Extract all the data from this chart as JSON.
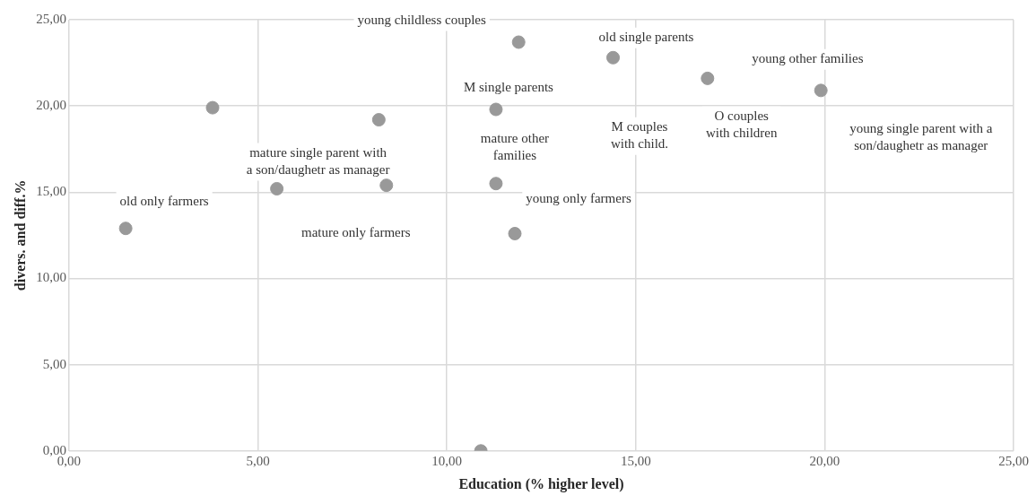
{
  "chart_data": {
    "type": "scatter",
    "xlabel": "Education (% higher level)",
    "ylabel": "divers. and diff.%",
    "x": [
      1.5,
      3.8,
      5.5,
      8.2,
      8.4,
      11.3,
      11.3,
      11.8,
      10.9,
      11.9,
      14.4,
      16.9,
      19.9
    ],
    "series": [
      {
        "color": "#999999",
        "values": [
          12.9,
          19.9,
          15.2,
          19.2,
          15.4,
          19.8,
          15.5,
          12.6,
          0,
          23.7,
          22.8,
          21.6,
          20.9
        ]
      }
    ],
    "xlim": [
      0,
      25
    ],
    "xticks": [
      {
        "value": 0,
        "label": "0,00"
      },
      {
        "value": 5,
        "label": "5,00"
      },
      {
        "value": 10,
        "label": "10,00"
      },
      {
        "value": 15,
        "label": "15,00"
      },
      {
        "value": 20,
        "label": "20,00"
      },
      {
        "value": 25,
        "label": "25,00"
      }
    ],
    "ylim": [
      0,
      25
    ],
    "yticks": [
      {
        "value": 0,
        "label": "0,00"
      },
      {
        "value": 5,
        "label": "5,00"
      },
      {
        "value": 10,
        "label": "10,00"
      },
      {
        "value": 15,
        "label": "15,00"
      },
      {
        "value": 20,
        "label": "20,00"
      },
      {
        "value": 25,
        "label": "25,00"
      }
    ],
    "grid": true,
    "marker": "circle",
    "annotations": [
      {
        "text": "young childless couples",
        "x": 11.9,
        "y": 23.7
      },
      {
        "text": "old single parents",
        "x": 14.4,
        "y": 22.8
      },
      "young other families",
      {
        "text": "M single parents",
        "x": 11.3,
        "y": 19.8
      },
      "M couples\nwith child.",
      "O couples\nwith children",
      "young single parent with a\nson/daughetr as manager",
      {
        "text": "mature single parent with\na son/daughetr as manager",
        "x": 5.5,
        "y": 15.2
      },
      {
        "text": "mature other\nfamilies",
        "x": 11.3,
        "y": 15.5
      },
      {
        "text": "old only farmers",
        "x": 1.5,
        "y": 12.9
      },
      {
        "text": "mature only farmers",
        "x": 8.4,
        "y": 15.4
      },
      {
        "text": "young only farmers",
        "x": 11.8,
        "y": 12.6
      }
    ]
  }
}
